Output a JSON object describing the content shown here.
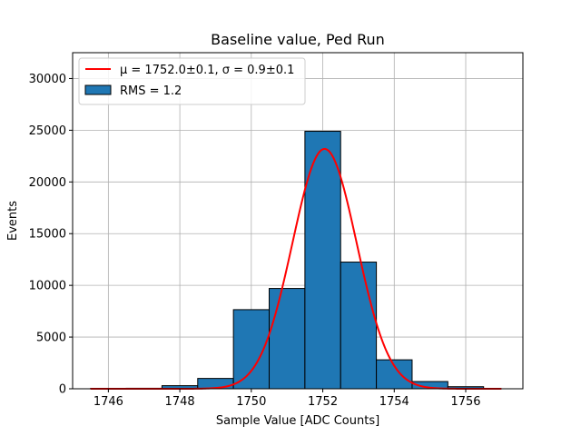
{
  "chart_data": {
    "type": "bar",
    "title": "Baseline value, Ped Run",
    "xlabel": "Sample Value [ADC Counts]",
    "ylabel": "Events",
    "xlim": [
      1745.0,
      1757.6
    ],
    "ylim": [
      0,
      32500
    ],
    "xticks": [
      1746,
      1748,
      1750,
      1752,
      1754,
      1756
    ],
    "yticks": [
      0,
      5000,
      10000,
      15000,
      20000,
      25000,
      30000
    ],
    "grid": true,
    "legend_position": "upper-left",
    "histogram": {
      "name": "RMS = 1.2",
      "color": "#1f77b4",
      "edgecolor": "#000000",
      "bin_edges": [
        1745.5,
        1746.5,
        1747.5,
        1748.5,
        1749.5,
        1750.5,
        1751.5,
        1752.5,
        1753.5,
        1754.5,
        1755.5,
        1756.5
      ],
      "values": [
        30,
        50,
        300,
        1000,
        7650,
        9700,
        24900,
        12250,
        2800,
        700,
        200
      ]
    },
    "fit": {
      "name": "μ = 1752.0±0.1, σ = 0.9±0.1",
      "color": "#ff0000",
      "type": "gaussian",
      "mean": 1752.05,
      "sigma": 0.9,
      "amplitude": 23200,
      "x_range": [
        1745.5,
        1757.0
      ]
    }
  }
}
